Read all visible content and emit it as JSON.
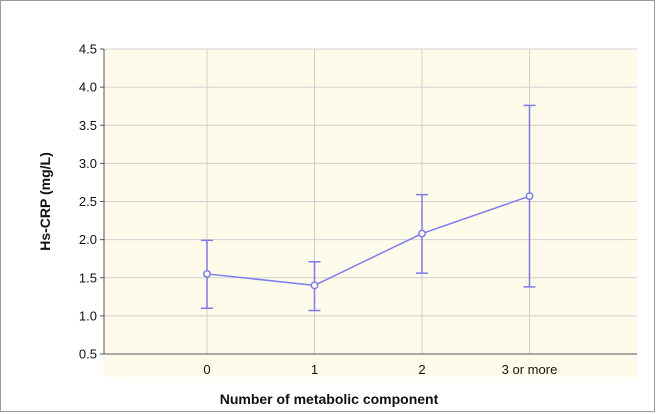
{
  "chart_data": {
    "type": "line",
    "title": "",
    "xlabel": "Number of metabolic component",
    "ylabel": "Hs-CRP (mg/L)",
    "categories": [
      "0",
      "1",
      "2",
      "3 or more"
    ],
    "ylim": [
      0.5,
      4.5
    ],
    "yticks": [
      "0.5",
      "1.0",
      "1.5",
      "2.0",
      "2.5",
      "3.0",
      "3.5",
      "4.0",
      "4.5"
    ],
    "grid": true,
    "legend": "none",
    "series": [
      {
        "values": [
          1.55,
          1.4,
          2.08,
          2.57
        ],
        "lower": [
          1.1,
          1.07,
          1.56,
          1.38
        ],
        "upper": [
          1.99,
          1.71,
          2.59,
          3.76
        ],
        "color": "#7b7bf0"
      }
    ],
    "colors": {
      "plot_background": "#fffbea",
      "grid": "#d0d0d0",
      "axis": "#555555"
    }
  }
}
